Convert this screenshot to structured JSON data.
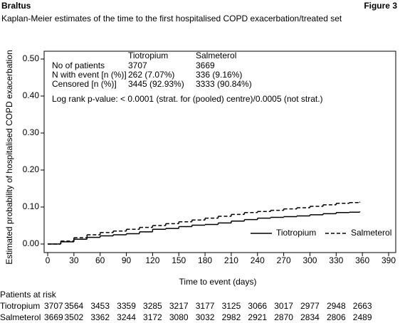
{
  "header": {
    "left": "Braltus",
    "right": "Figure 3"
  },
  "chart_data": {
    "type": "step",
    "title": "Kaplan-Meier estimates of the time to the first hospitalised COPD exacerbation/treated set",
    "x_label": "Time to event (days)",
    "y_label": "Estimated probability of hospitalised COPD exacerbation",
    "x": [
      0,
      15,
      30,
      45,
      60,
      75,
      90,
      105,
      120,
      135,
      150,
      165,
      180,
      195,
      210,
      225,
      240,
      255,
      270,
      285,
      300,
      315,
      330,
      345,
      357
    ],
    "series": [
      {
        "name": "Tiotropium",
        "color": "#000000",
        "dash": false,
        "values": [
          0.0,
          0.006,
          0.013,
          0.018,
          0.022,
          0.025,
          0.028,
          0.033,
          0.04,
          0.042,
          0.047,
          0.051,
          0.053,
          0.057,
          0.062,
          0.066,
          0.07,
          0.072,
          0.074,
          0.076,
          0.079,
          0.082,
          0.085,
          0.086,
          0.088
        ]
      },
      {
        "name": "Salmeterol",
        "color": "#000000",
        "dash": true,
        "values": [
          0.0,
          0.008,
          0.017,
          0.025,
          0.031,
          0.035,
          0.04,
          0.045,
          0.05,
          0.055,
          0.06,
          0.065,
          0.07,
          0.075,
          0.08,
          0.085,
          0.088,
          0.091,
          0.095,
          0.098,
          0.102,
          0.106,
          0.11,
          0.112,
          0.114
        ]
      }
    ],
    "xlim": [
      0,
      390
    ],
    "xticks": [
      0,
      30,
      60,
      90,
      120,
      150,
      180,
      210,
      240,
      270,
      300,
      330,
      360,
      390
    ],
    "ylim": [
      0,
      0.5
    ],
    "yticks": [
      {
        "value": 0,
        "label": "0.00"
      },
      {
        "value": 0.1,
        "label": "0.10"
      },
      {
        "value": 0.2,
        "label": "0.20"
      },
      {
        "value": 0.3,
        "label": "0.30"
      },
      {
        "value": 0.4,
        "label": "0.40"
      },
      {
        "value": 0.5,
        "label": "0.50"
      }
    ],
    "legend": "lower right",
    "summary_table": {
      "columns": [
        "Tiotropium",
        "Salmeterol"
      ],
      "rows": [
        [
          "No of patients",
          "3707",
          "3669"
        ],
        [
          "N with event [n (%)]",
          "262 (7.07%)",
          "336 (9.16%)"
        ],
        [
          "Censored [n (%)]",
          "3445 (92.93%)",
          "3333 (90.84%)"
        ]
      ],
      "note": "Log rank p-value: < 0.0001 (strat. for (pooled) centre)/0.0005 (not strat.)"
    },
    "risk_table": {
      "title": "Patients at risk",
      "rows": [
        {
          "name": "Tiotropium",
          "values": [
            "3707",
            "3564",
            "3453",
            "3359",
            "3285",
            "3217",
            "3177",
            "3125",
            "3066",
            "3017",
            "2977",
            "2948",
            "2663"
          ]
        },
        {
          "name": "Salmeterol",
          "values": [
            "3669",
            "3502",
            "3362",
            "3244",
            "3172",
            "3080",
            "3032",
            "2982",
            "2921",
            "2870",
            "2834",
            "2806",
            "2489"
          ]
        }
      ]
    }
  }
}
